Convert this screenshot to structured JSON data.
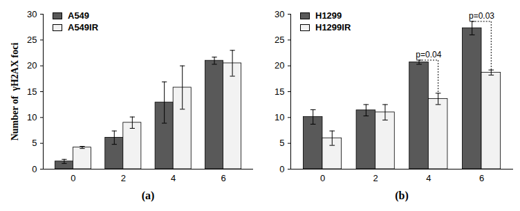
{
  "chart_data": [
    {
      "type": "bar",
      "title": "(a)",
      "ylabel": "Number of  γH2AX foci",
      "categories": [
        "0",
        "2",
        "4",
        "6"
      ],
      "series": [
        {
          "name": "A549",
          "color": "#595959",
          "values": [
            1.5,
            6.1,
            12.9,
            21.0
          ],
          "errors": [
            0.4,
            1.3,
            4.0,
            0.7
          ]
        },
        {
          "name": "A549IR",
          "color": "#f2f2f2",
          "values": [
            4.2,
            9.0,
            15.8,
            20.5
          ],
          "errors": [
            0.2,
            1.1,
            4.2,
            2.5
          ]
        }
      ],
      "ylim": [
        0,
        30
      ],
      "yticks": [
        0,
        5,
        10,
        15,
        20,
        25,
        30
      ],
      "legend": "upper left"
    },
    {
      "type": "bar",
      "title": "(b)",
      "categories": [
        "0",
        "2",
        "4",
        "6"
      ],
      "series": [
        {
          "name": "H1299",
          "color": "#595959",
          "values": [
            10.1,
            11.4,
            20.7,
            27.3
          ],
          "errors": [
            1.4,
            1.1,
            0.4,
            1.3
          ]
        },
        {
          "name": "H1299IR",
          "color": "#f2f2f2",
          "values": [
            6.0,
            11.0,
            13.6,
            18.7
          ],
          "errors": [
            1.4,
            1.5,
            1.1,
            0.5
          ]
        }
      ],
      "ylim": [
        0,
        30
      ],
      "yticks": [
        0,
        5,
        10,
        15,
        20,
        25,
        30
      ],
      "legend": "upper left",
      "annotations": [
        {
          "category": "4",
          "text": "p=0.04"
        },
        {
          "category": "6",
          "text": "p=0.03"
        }
      ]
    }
  ]
}
